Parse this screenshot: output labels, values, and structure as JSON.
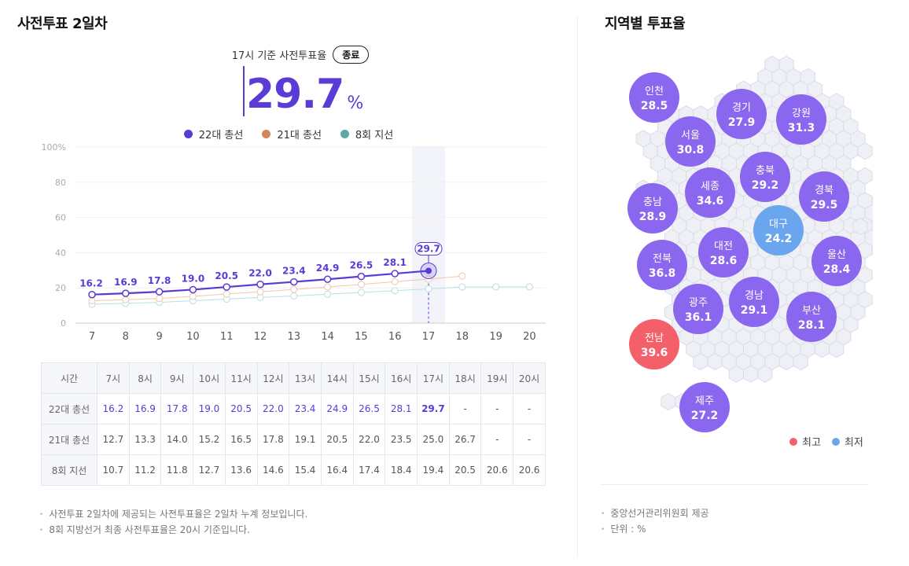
{
  "left_panel": {
    "title": "사전투표 2일차",
    "basis_label": "17시 기준 사전투표율",
    "status_badge": "종료",
    "big_value": "29.7",
    "big_unit": "%",
    "notes": [
      "사전투표 2일차에 제공되는 사전투표율은 2일차 누계 정보입니다.",
      "8회 지방선거 최종 사전투표율은 20시 기준입니다."
    ]
  },
  "right_panel": {
    "title": "지역별 투표율",
    "legend_high": "최고",
    "legend_low": "최저",
    "notes": [
      "중앙선거관리위원회 제공",
      "단위 : %"
    ]
  },
  "colors": {
    "accent": "#5c3ad6",
    "series_21": "#e0a07a",
    "series_8": "#7cc6c2",
    "region_default": "#8a67ee",
    "region_high": "#f4606a",
    "region_low": "#6aa6ee"
  },
  "chart_data": {
    "type": "line",
    "x": [
      "7",
      "8",
      "9",
      "10",
      "11",
      "12",
      "13",
      "14",
      "15",
      "16",
      "17",
      "18",
      "19",
      "20"
    ],
    "ylim": [
      0,
      100
    ],
    "yticks": [
      "0",
      "20",
      "40",
      "60",
      "80",
      "100%"
    ],
    "highlight_x": "17",
    "highlight_label": "29.7",
    "series": [
      {
        "name": "22대 총선",
        "color": "#5c3ad6",
        "values": [
          16.2,
          16.9,
          17.8,
          19.0,
          20.5,
          22.0,
          23.4,
          24.9,
          26.5,
          28.1,
          29.7,
          null,
          null,
          null
        ]
      },
      {
        "name": "21대 총선",
        "color": "#d08656",
        "values": [
          12.7,
          13.3,
          14.0,
          15.2,
          16.5,
          17.8,
          19.1,
          20.5,
          22.0,
          23.5,
          25.0,
          26.7,
          null,
          null
        ]
      },
      {
        "name": "8회 지선",
        "color": "#5fa8a4",
        "values": [
          10.7,
          11.2,
          11.8,
          12.7,
          13.6,
          14.6,
          15.4,
          16.4,
          17.4,
          18.4,
          19.4,
          20.5,
          20.6,
          20.6
        ]
      }
    ]
  },
  "table": {
    "header_label": "시간",
    "hours": [
      "7시",
      "8시",
      "9시",
      "10시",
      "11시",
      "12시",
      "13시",
      "14시",
      "15시",
      "16시",
      "17시",
      "18시",
      "19시",
      "20시"
    ],
    "rows": [
      {
        "label": "22대 총선",
        "cells": [
          "16.2",
          "16.9",
          "17.8",
          "19.0",
          "20.5",
          "22.0",
          "23.4",
          "24.9",
          "26.5",
          "28.1",
          "29.7",
          "-",
          "-",
          "-"
        ]
      },
      {
        "label": "21대 총선",
        "cells": [
          "12.7",
          "13.3",
          "14.0",
          "15.2",
          "16.5",
          "17.8",
          "19.1",
          "20.5",
          "22.0",
          "23.5",
          "25.0",
          "26.7",
          "-",
          "-"
        ]
      },
      {
        "label": "8회 지선",
        "cells": [
          "10.7",
          "11.2",
          "11.8",
          "12.7",
          "13.6",
          "14.6",
          "15.4",
          "16.4",
          "17.4",
          "18.4",
          "19.4",
          "20.5",
          "20.6",
          "20.6"
        ]
      }
    ]
  },
  "regions": [
    {
      "name": "인천",
      "value": "28.5",
      "status": "normal"
    },
    {
      "name": "경기",
      "value": "27.9",
      "status": "normal"
    },
    {
      "name": "강원",
      "value": "31.3",
      "status": "normal"
    },
    {
      "name": "서울",
      "value": "30.8",
      "status": "normal"
    },
    {
      "name": "충북",
      "value": "29.2",
      "status": "normal"
    },
    {
      "name": "충남",
      "value": "28.9",
      "status": "normal"
    },
    {
      "name": "세종",
      "value": "34.6",
      "status": "normal"
    },
    {
      "name": "경북",
      "value": "29.5",
      "status": "normal"
    },
    {
      "name": "대구",
      "value": "24.2",
      "status": "low"
    },
    {
      "name": "대전",
      "value": "28.6",
      "status": "normal"
    },
    {
      "name": "전북",
      "value": "36.8",
      "status": "normal"
    },
    {
      "name": "울산",
      "value": "28.4",
      "status": "normal"
    },
    {
      "name": "광주",
      "value": "36.1",
      "status": "normal"
    },
    {
      "name": "경남",
      "value": "29.1",
      "status": "normal"
    },
    {
      "name": "부산",
      "value": "28.1",
      "status": "normal"
    },
    {
      "name": "전남",
      "value": "39.6",
      "status": "high"
    },
    {
      "name": "제주",
      "value": "27.2",
      "status": "normal"
    }
  ]
}
